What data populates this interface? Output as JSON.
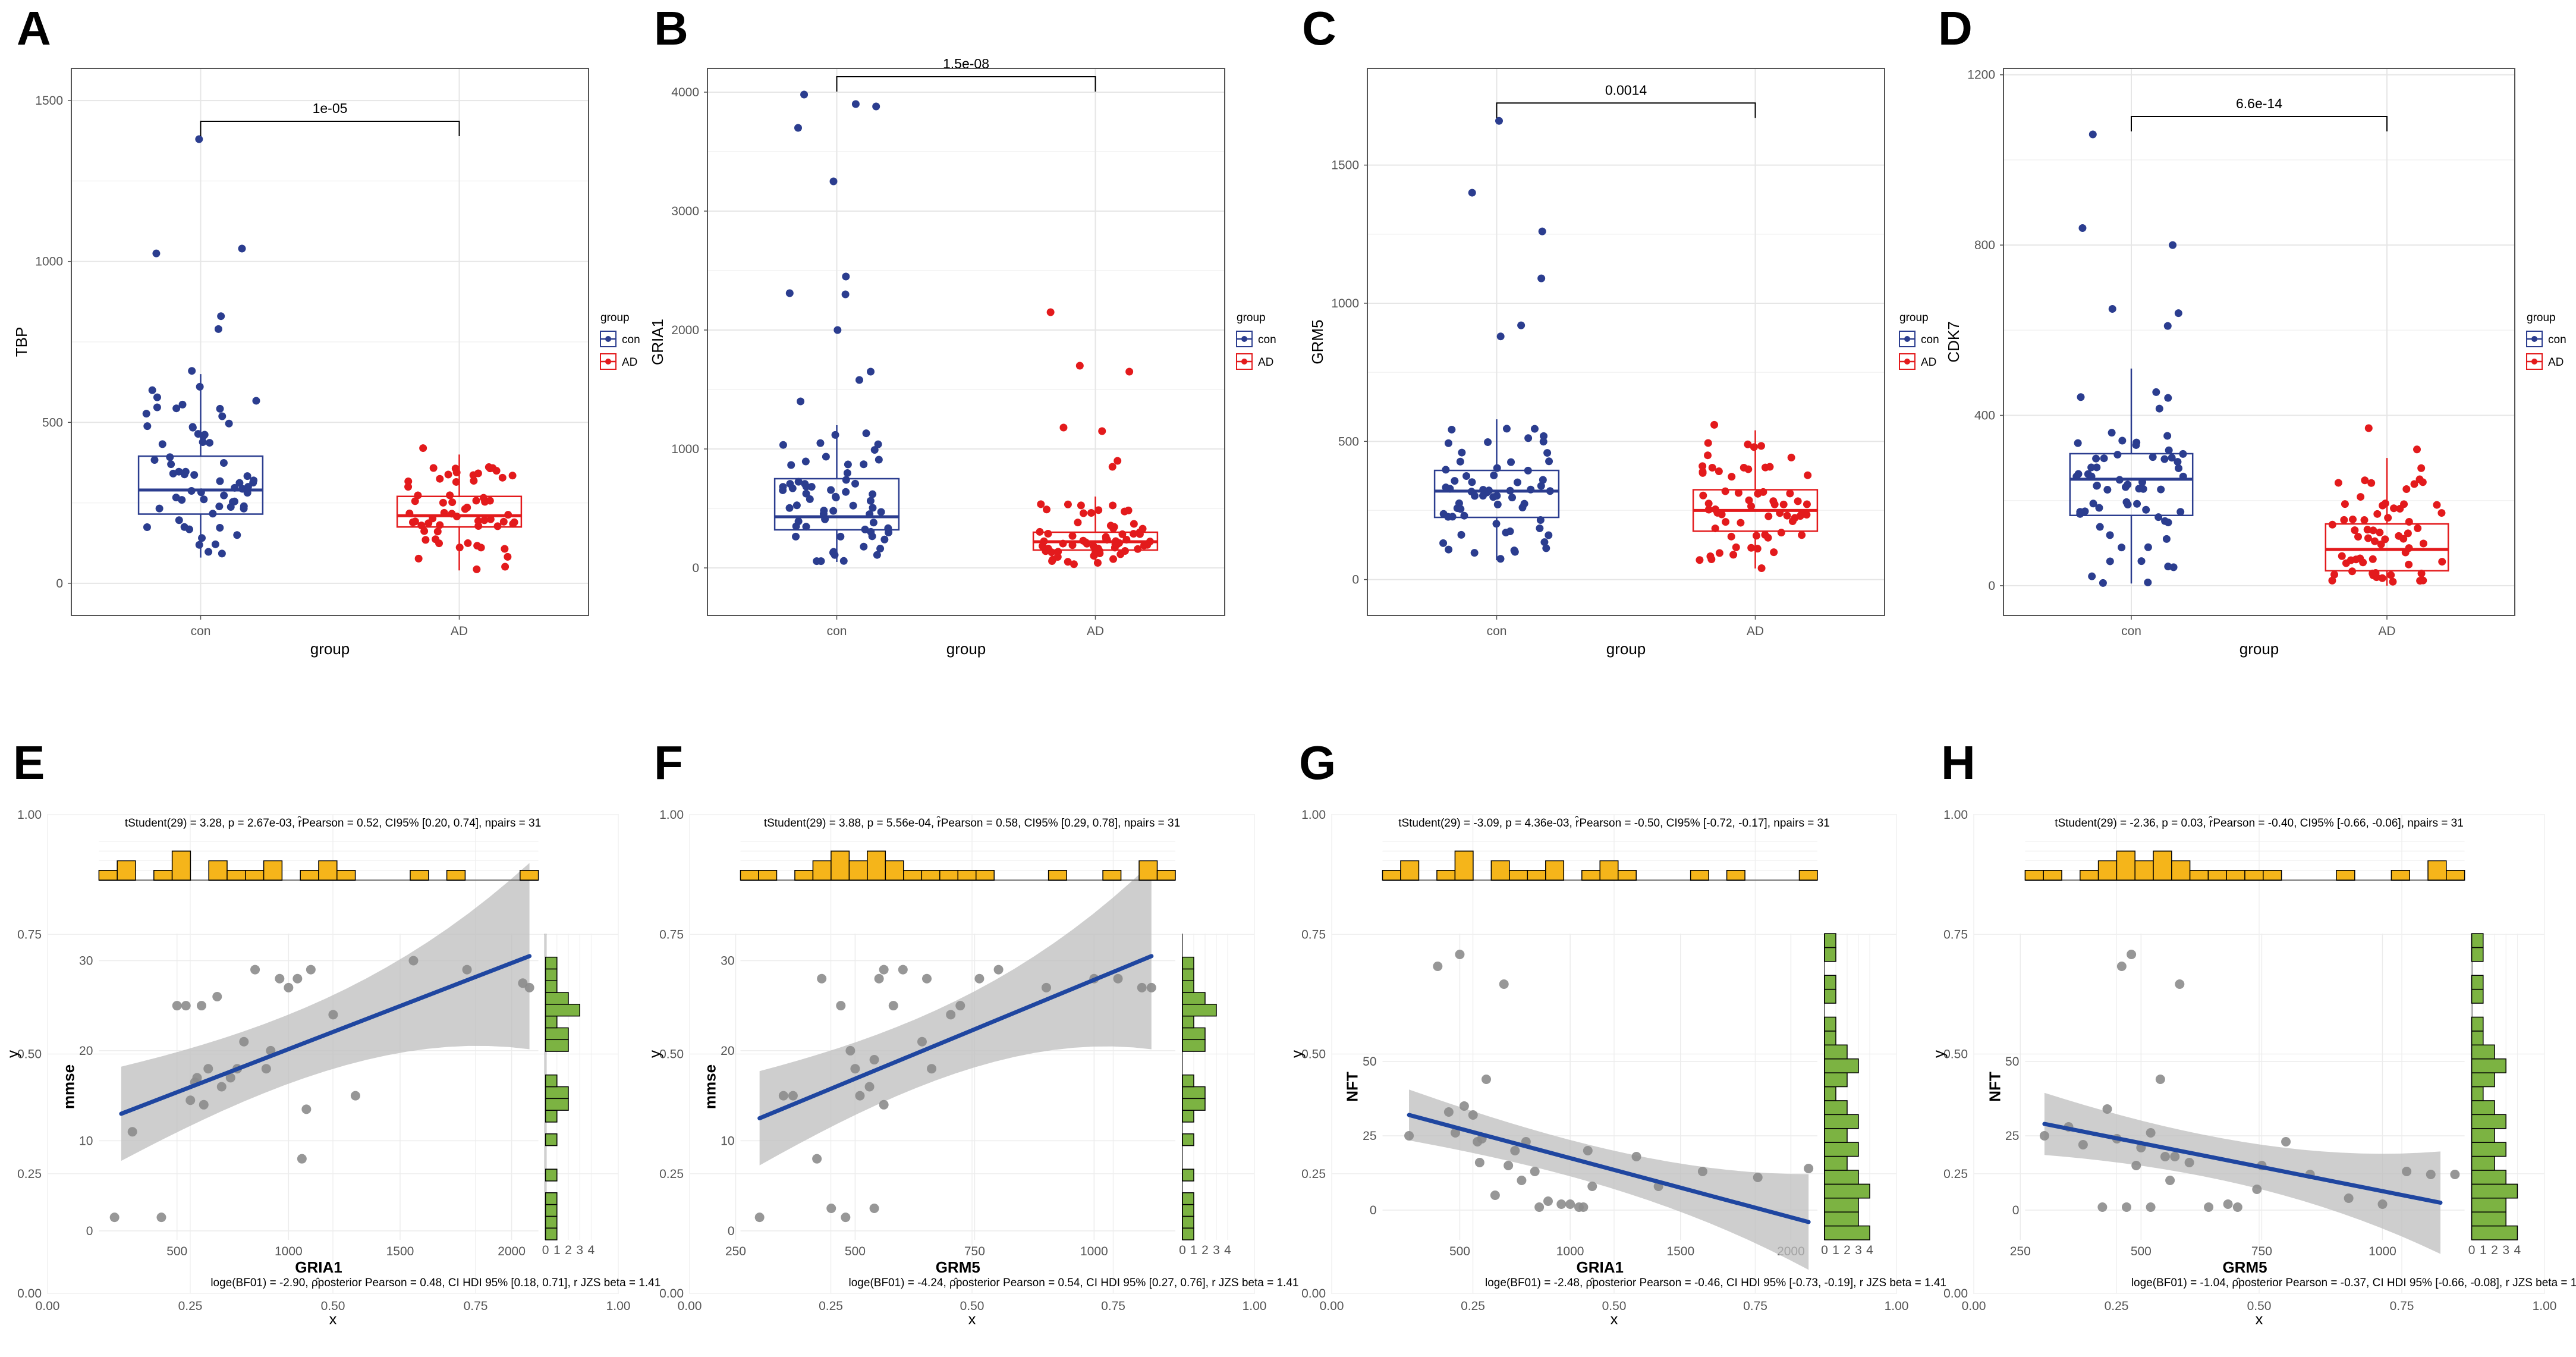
{
  "colors": {
    "con": "#2b3d8f",
    "ad": "#e31a1c",
    "regline": "#1f46a0",
    "band": "#bdbdbd",
    "points": "#8c8c8c",
    "histx": "#f5b51a",
    "histy": "#7cb342",
    "grid": "#e6e6e6",
    "frame": "#555555"
  },
  "chart_data": [
    {
      "id": "A",
      "type": "box",
      "letter": "A",
      "ylabel": "TBP",
      "xlabel": "group",
      "categories": [
        "con",
        "AD"
      ],
      "yticks": [
        0,
        500,
        1000,
        1500
      ],
      "ylim": [
        -100,
        1600
      ],
      "pvalue": "1e-05",
      "legend": {
        "title": "group",
        "entries": [
          "con",
          "AD"
        ]
      },
      "boxes": [
        {
          "group": "con",
          "q1": 215,
          "median": 290,
          "q3": 395,
          "wlo": 80,
          "whi": 650
        },
        {
          "group": "AD",
          "q1": 175,
          "median": 210,
          "q3": 270,
          "wlo": 40,
          "whi": 400
        }
      ],
      "outliers": [
        [
          0,
          1380
        ],
        [
          0,
          1040
        ],
        [
          0,
          1025
        ],
        [
          0,
          830
        ],
        [
          0,
          790
        ],
        [
          0,
          660
        ],
        [
          0,
          600
        ],
        [
          1,
          420
        ]
      ]
    },
    {
      "id": "B",
      "type": "box",
      "letter": "B",
      "ylabel": "GRIA1",
      "xlabel": "group",
      "categories": [
        "con",
        "AD"
      ],
      "yticks": [
        0,
        1000,
        2000,
        3000,
        4000
      ],
      "ylim": [
        -400,
        4200
      ],
      "pvalue": "1.5e-08",
      "legend": {
        "title": "group",
        "entries": [
          "con",
          "AD"
        ]
      },
      "boxes": [
        {
          "group": "con",
          "q1": 320,
          "median": 430,
          "q3": 750,
          "wlo": 50,
          "whi": 1200
        },
        {
          "group": "AD",
          "q1": 150,
          "median": 220,
          "q3": 300,
          "wlo": 30,
          "whi": 600
        }
      ],
      "outliers": [
        [
          0,
          3980
        ],
        [
          0,
          3900
        ],
        [
          0,
          3880
        ],
        [
          0,
          3700
        ],
        [
          0,
          3250
        ],
        [
          0,
          2450
        ],
        [
          0,
          2310
        ],
        [
          0,
          2300
        ],
        [
          0,
          2000
        ],
        [
          0,
          1650
        ],
        [
          0,
          1580
        ],
        [
          0,
          1400
        ],
        [
          1,
          2150
        ],
        [
          1,
          1700
        ],
        [
          1,
          1650
        ],
        [
          1,
          1180
        ],
        [
          1,
          1150
        ],
        [
          1,
          900
        ],
        [
          1,
          850
        ]
      ]
    },
    {
      "id": "C",
      "type": "box",
      "letter": "C",
      "ylabel": "GRM5",
      "xlabel": "group",
      "categories": [
        "con",
        "AD"
      ],
      "yticks": [
        0,
        500,
        1000,
        1500
      ],
      "ylim": [
        -130,
        1850
      ],
      "pvalue": "0.0014",
      "legend": {
        "title": "group",
        "entries": [
          "con",
          "AD"
        ]
      },
      "boxes": [
        {
          "group": "con",
          "q1": 225,
          "median": 320,
          "q3": 395,
          "wlo": 70,
          "whi": 580
        },
        {
          "group": "AD",
          "q1": 175,
          "median": 250,
          "q3": 325,
          "wlo": 40,
          "whi": 540
        }
      ],
      "outliers": [
        [
          0,
          1660
        ],
        [
          0,
          1400
        ],
        [
          0,
          1260
        ],
        [
          0,
          1090
        ],
        [
          0,
          920
        ],
        [
          0,
          880
        ],
        [
          1,
          560
        ]
      ]
    },
    {
      "id": "D",
      "type": "box",
      "letter": "D",
      "ylabel": "CDK7",
      "xlabel": "group",
      "categories": [
        "con",
        "AD"
      ],
      "yticks": [
        0,
        400,
        800,
        1200
      ],
      "ylim": [
        -70,
        1215
      ],
      "pvalue": "6.6e-14",
      "legend": {
        "title": "group",
        "entries": [
          "con",
          "AD"
        ]
      },
      "boxes": [
        {
          "group": "con",
          "q1": 165,
          "median": 250,
          "q3": 310,
          "wlo": 5,
          "whi": 510
        },
        {
          "group": "AD",
          "q1": 35,
          "median": 85,
          "q3": 145,
          "wlo": 0,
          "whi": 300
        }
      ],
      "outliers": [
        [
          0,
          1060
        ],
        [
          0,
          840
        ],
        [
          0,
          800
        ],
        [
          0,
          650
        ],
        [
          0,
          640
        ],
        [
          0,
          610
        ],
        [
          1,
          370
        ],
        [
          1,
          320
        ]
      ]
    },
    {
      "id": "E",
      "type": "scatter",
      "letter": "E",
      "xlabel": "GRIA1",
      "ylabel": "mmse",
      "outer_x": "x",
      "outer_y": "y",
      "outer_ticks": [
        "0.00",
        "0.25",
        "0.50",
        "0.75",
        "1.00"
      ],
      "xticks": [
        500,
        1000,
        1500,
        2000
      ],
      "xlim": [
        150,
        2120
      ],
      "yticks": [
        0,
        10,
        20,
        30
      ],
      "ylim": [
        -1,
        33
      ],
      "fit": {
        "x0": 250,
        "y0": 13,
        "x1": 2080,
        "y1": 30.5,
        "se0": 5.5,
        "se1": 9
      },
      "hist_bins_x": [
        1,
        2,
        0,
        1,
        3,
        0,
        2,
        1,
        1,
        2,
        0,
        1,
        2,
        1,
        0,
        0,
        0,
        1,
        0,
        1,
        0,
        0,
        0,
        1
      ],
      "hist_bins_y": [
        1,
        1,
        1,
        1,
        0,
        1,
        0,
        0,
        1,
        0,
        1,
        2,
        2,
        1,
        0,
        0,
        2,
        2,
        1,
        3,
        2,
        1,
        1,
        1,
        0,
        0
      ],
      "hist_ticks": [
        "0",
        "1",
        "2",
        "3",
        "4"
      ],
      "points": [
        [
          220,
          1.5
        ],
        [
          300,
          11
        ],
        [
          430,
          1.5
        ],
        [
          500,
          25
        ],
        [
          540,
          25
        ],
        [
          560,
          14.5
        ],
        [
          580,
          16.5
        ],
        [
          590,
          17
        ],
        [
          610,
          25
        ],
        [
          620,
          14
        ],
        [
          640,
          18
        ],
        [
          680,
          26
        ],
        [
          700,
          16
        ],
        [
          740,
          17
        ],
        [
          770,
          18
        ],
        [
          800,
          21
        ],
        [
          850,
          29
        ],
        [
          900,
          18
        ],
        [
          920,
          20
        ],
        [
          960,
          28
        ],
        [
          1000,
          27
        ],
        [
          1040,
          28
        ],
        [
          1060,
          8
        ],
        [
          1080,
          13.5
        ],
        [
          1100,
          29
        ],
        [
          1200,
          24
        ],
        [
          1300,
          15
        ],
        [
          1560,
          30
        ],
        [
          1800,
          29
        ],
        [
          2050,
          27.5
        ],
        [
          2080,
          27
        ]
      ],
      "stat_top": "tStudent(29) = 3.28, p = 2.67e-03, r̂Pearson = 0.52, CI95% [0.20, 0.74], npairs = 31",
      "stat_bottom": "loge(BF01) = -2.90, ρ̂posterior Pearson = 0.48, CI HDI 95% [0.18, 0.71], r JZS beta = 1.41"
    },
    {
      "id": "F",
      "type": "scatter",
      "letter": "F",
      "xlabel": "GRM5",
      "ylabel": "mmse",
      "outer_x": "x",
      "outer_y": "y",
      "outer_ticks": [
        "0.00",
        "0.25",
        "0.50",
        "0.75",
        "1.00"
      ],
      "xticks": [
        250,
        500,
        750,
        1000
      ],
      "xlim": [
        260,
        1170
      ],
      "yticks": [
        0,
        10,
        20,
        30
      ],
      "ylim": [
        -1,
        33
      ],
      "fit": {
        "x0": 300,
        "y0": 12.5,
        "x1": 1120,
        "y1": 30.5,
        "se0": 5.5,
        "se1": 9
      },
      "hist_bins_x": [
        1,
        1,
        0,
        1,
        2,
        3,
        2,
        3,
        2,
        1,
        1,
        1,
        1,
        1,
        0,
        0,
        0,
        1,
        0,
        0,
        1,
        0,
        2,
        1
      ],
      "hist_bins_y": [
        1,
        1,
        1,
        1,
        0,
        1,
        0,
        0,
        1,
        0,
        1,
        2,
        2,
        1,
        0,
        0,
        2,
        2,
        1,
        3,
        2,
        1,
        1,
        1,
        0,
        0
      ],
      "hist_ticks": [
        "0",
        "1",
        "2",
        "3",
        "4"
      ],
      "points": [
        [
          300,
          1.5
        ],
        [
          350,
          15
        ],
        [
          370,
          15
        ],
        [
          420,
          8
        ],
        [
          430,
          28
        ],
        [
          450,
          2.5
        ],
        [
          470,
          25
        ],
        [
          480,
          1.5
        ],
        [
          490,
          20
        ],
        [
          500,
          18
        ],
        [
          510,
          15
        ],
        [
          530,
          16
        ],
        [
          540,
          19
        ],
        [
          550,
          28
        ],
        [
          560,
          29
        ],
        [
          580,
          25
        ],
        [
          600,
          29
        ],
        [
          640,
          21
        ],
        [
          650,
          28
        ],
        [
          700,
          24
        ],
        [
          720,
          25
        ],
        [
          760,
          28
        ],
        [
          800,
          29
        ],
        [
          900,
          27
        ],
        [
          1000,
          28
        ],
        [
          1050,
          28
        ],
        [
          1100,
          27
        ],
        [
          1120,
          27
        ],
        [
          540,
          2.5
        ],
        [
          560,
          14
        ],
        [
          660,
          18
        ]
      ],
      "stat_top": "tStudent(29) = 3.88, p = 5.56e-04, r̂Pearson = 0.58, CI95% [0.29, 0.78], npairs = 31",
      "stat_bottom": "loge(BF01) = -4.24, ρ̂posterior Pearson = 0.54, CI HDI 95% [0.27, 0.76], r JZS beta = 1.41"
    },
    {
      "id": "G",
      "type": "scatter",
      "letter": "G",
      "xlabel": "GRIA1",
      "ylabel": "NFT",
      "outer_x": "x",
      "outer_y": "y",
      "outer_ticks": [
        "0.00",
        "0.25",
        "0.50",
        "0.75",
        "1.00"
      ],
      "xticks": [
        500,
        1000,
        1500,
        2000
      ],
      "xlim": [
        150,
        2120
      ],
      "yticks": [
        0,
        25,
        50
      ],
      "ylim": [
        -10,
        93
      ],
      "fit": {
        "x0": 270,
        "y0": 32,
        "x1": 2080,
        "y1": -4,
        "se0": 9,
        "se1": 14
      },
      "hist_bins_x": [
        1,
        2,
        0,
        1,
        3,
        0,
        2,
        1,
        1,
        2,
        0,
        1,
        2,
        1,
        0,
        0,
        0,
        1,
        0,
        1,
        0,
        0,
        0,
        1
      ],
      "hist_bins_y": [
        4,
        3,
        3,
        4,
        3,
        2,
        3,
        2,
        3,
        2,
        1,
        2,
        3,
        2,
        1,
        1,
        0,
        1,
        1,
        0,
        1,
        1
      ],
      "hist_ticks": [
        "0",
        "1",
        "2",
        "3",
        "4"
      ],
      "points": [
        [
          270,
          25
        ],
        [
          400,
          82
        ],
        [
          450,
          33
        ],
        [
          480,
          26
        ],
        [
          500,
          86
        ],
        [
          520,
          35
        ],
        [
          560,
          32
        ],
        [
          580,
          23
        ],
        [
          590,
          16
        ],
        [
          600,
          24
        ],
        [
          620,
          44
        ],
        [
          660,
          5
        ],
        [
          700,
          76
        ],
        [
          720,
          15
        ],
        [
          750,
          20
        ],
        [
          780,
          10
        ],
        [
          800,
          23
        ],
        [
          840,
          13
        ],
        [
          860,
          1
        ],
        [
          900,
          3
        ],
        [
          960,
          2
        ],
        [
          1000,
          2
        ],
        [
          1040,
          1
        ],
        [
          1060,
          1
        ],
        [
          1080,
          20
        ],
        [
          1100,
          8
        ],
        [
          1300,
          18
        ],
        [
          1400,
          8
        ],
        [
          1600,
          13
        ],
        [
          1850,
          11
        ],
        [
          2080,
          14
        ]
      ],
      "stat_top": "tStudent(29) = -3.09, p = 4.36e-03, r̂Pearson = -0.50, CI95% [-0.72, -0.17], npairs = 31",
      "stat_bottom": "loge(BF01) = -2.48, ρ̂posterior Pearson = -0.46, CI HDI 95% [-0.73, -0.19], r JZS beta = 1.41"
    },
    {
      "id": "H",
      "type": "scatter",
      "letter": "H",
      "xlabel": "GRM5",
      "ylabel": "NFT",
      "outer_x": "x",
      "outer_y": "y",
      "outer_ticks": [
        "0.00",
        "0.25",
        "0.50",
        "0.75",
        "1.00"
      ],
      "xticks": [
        250,
        500,
        750,
        1000
      ],
      "xlim": [
        260,
        1170
      ],
      "yticks": [
        0,
        25,
        50
      ],
      "ylim": [
        -10,
        93
      ],
      "fit": {
        "x0": 300,
        "y0": 29,
        "x1": 1120,
        "y1": 2.5,
        "se0": 11,
        "se1": 15
      },
      "hist_bins_x": [
        1,
        1,
        0,
        1,
        2,
        3,
        2,
        3,
        2,
        1,
        1,
        1,
        1,
        1,
        0,
        0,
        0,
        1,
        0,
        0,
        1,
        0,
        2,
        1
      ],
      "hist_bins_y": [
        4,
        3,
        3,
        4,
        3,
        2,
        3,
        2,
        3,
        2,
        1,
        2,
        3,
        2,
        1,
        1,
        0,
        1,
        1,
        0,
        1,
        1
      ],
      "hist_ticks": [
        "0",
        "1",
        "2",
        "3",
        "4"
      ],
      "points": [
        [
          300,
          25
        ],
        [
          350,
          28
        ],
        [
          380,
          22
        ],
        [
          420,
          1
        ],
        [
          430,
          34
        ],
        [
          450,
          24
        ],
        [
          460,
          82
        ],
        [
          470,
          1
        ],
        [
          480,
          86
        ],
        [
          490,
          15
        ],
        [
          500,
          21
        ],
        [
          520,
          1
        ],
        [
          540,
          44
        ],
        [
          550,
          18
        ],
        [
          560,
          10
        ],
        [
          570,
          18
        ],
        [
          580,
          76
        ],
        [
          600,
          16
        ],
        [
          640,
          1
        ],
        [
          680,
          2
        ],
        [
          700,
          1
        ],
        [
          740,
          7
        ],
        [
          800,
          23
        ],
        [
          850,
          12
        ],
        [
          930,
          4
        ],
        [
          1000,
          2
        ],
        [
          1050,
          13
        ],
        [
          1100,
          12
        ],
        [
          1150,
          12
        ],
        [
          750,
          15
        ],
        [
          520,
          26
        ]
      ],
      "stat_top": "tStudent(29) = -2.36, p = 0.03, r̂Pearson = -0.40, CI95% [-0.66, -0.06], npairs = 31",
      "stat_bottom": "loge(BF01) = -1.04, ρ̂posterior Pearson = -0.37, CI HDI 95% [-0.66, -0.08], r JZS beta = 1.41"
    }
  ]
}
